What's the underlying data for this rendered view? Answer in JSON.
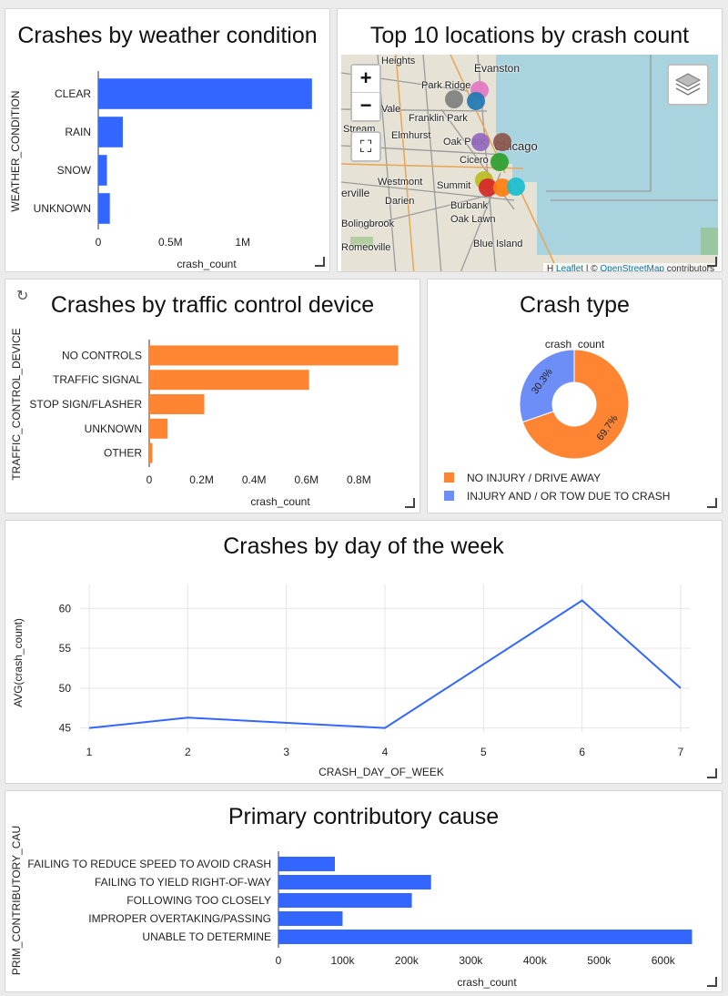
{
  "weather": {
    "title": "Crashes by weather condition",
    "chart_data": {
      "type": "bar",
      "orientation": "horizontal",
      "categories": [
        "CLEAR",
        "RAIN",
        "SNOW",
        "UNKNOWN"
      ],
      "values": [
        1480000,
        170000,
        60000,
        80000
      ],
      "xlabel": "crash_count",
      "ylabel": "WEATHER_CONDITION",
      "xlim": [
        0,
        1500000
      ],
      "ticks": [
        {
          "v": 0,
          "label": "0"
        },
        {
          "v": 500000,
          "label": "0.5M"
        },
        {
          "v": 1000000,
          "label": "1M"
        }
      ],
      "color": "#3366ff"
    }
  },
  "map": {
    "title": "Top 10 locations by crash count",
    "zoom_in": "+",
    "zoom_out": "−",
    "fullscreen": "⛶",
    "attribution_prefix": "H",
    "attribution_leaflet": "Leaflet",
    "attribution_sep": " | © ",
    "attribution_osm": "OpenStreetMap",
    "attribution_suffix": " contributors",
    "labels": {
      "heights": "Heights",
      "evanston": "Evanston",
      "park_ridge": "Park Ridge",
      "vale": "Vale",
      "franklin_park": "Franklin Park",
      "stream": "Stream",
      "elmhurst": "Elmhurst",
      "oak_park": "Oak Park",
      "chicago": "Chicago",
      "cicero": "Cicero",
      "westmont": "Westmont",
      "summit": "Summit",
      "erville": "erville",
      "darien": "Darien",
      "burbank": "Burbank",
      "oak_lawn": "Oak Lawn",
      "bolingbrook": "Bolingbrook",
      "blue_island": "Blue Island",
      "romeoville": "Romeoville"
    },
    "marker_colors": [
      "#7f7f7f",
      "#e377c2",
      "#1f77b4",
      "#9467bd",
      "#8c564b",
      "#2ca02c",
      "#bcbd22",
      "#d62728",
      "#ff7f0e",
      "#17becf"
    ]
  },
  "traffic": {
    "title": "Crashes by traffic control device",
    "refresh_icon": "↻",
    "chart_data": {
      "type": "bar",
      "orientation": "horizontal",
      "categories": [
        "NO CONTROLS",
        "TRAFFIC SIGNAL",
        "STOP SIGN/FLASHER",
        "UNKNOWN",
        "OTHER"
      ],
      "values": [
        950000,
        610000,
        210000,
        70000,
        12000
      ],
      "xlabel": "crash_count",
      "ylabel": "TRAFFIC_CONTROL_DEVICE",
      "xlim": [
        0,
        1000000
      ],
      "ticks": [
        {
          "v": 0,
          "label": "0"
        },
        {
          "v": 200000,
          "label": "0.2M"
        },
        {
          "v": 400000,
          "label": "0.4M"
        },
        {
          "v": 600000,
          "label": "0.6M"
        },
        {
          "v": 800000,
          "label": "0.8M"
        }
      ],
      "color": "#ff8533"
    }
  },
  "crash_type": {
    "title": "Crash type",
    "chart_data": {
      "type": "pie",
      "subtitle": "crash_count",
      "slices": [
        {
          "name": "NO INJURY / DRIVE AWAY",
          "value": 69.7,
          "label": "69.7%",
          "color": "#ff8533"
        },
        {
          "name": "INJURY AND / OR TOW DUE TO CRASH",
          "value": 30.3,
          "label": "30.3%",
          "color": "#6d8ef7"
        }
      ]
    }
  },
  "day_of_week": {
    "title": "Crashes by day of the week",
    "chart_data": {
      "type": "line",
      "x": [
        1,
        2,
        4,
        6,
        7
      ],
      "y": [
        45.0,
        46.3,
        45.0,
        61.0,
        50.0
      ],
      "xlabel": "CRASH_DAY_OF_WEEK",
      "ylabel": "AVG(crash_count)",
      "xlim": [
        1,
        7
      ],
      "ylim": [
        44.5,
        63
      ],
      "xticks": [
        1,
        2,
        3,
        4,
        5,
        6,
        7
      ],
      "yticks": [
        45,
        50,
        55,
        60
      ],
      "grid": true,
      "color": "#3366ff"
    }
  },
  "cause": {
    "title": "Primary contributory cause",
    "chart_data": {
      "type": "bar",
      "orientation": "horizontal",
      "categories": [
        "FAILING TO REDUCE SPEED TO AVOID CRASH",
        "FAILING TO YIELD RIGHT-OF-WAY",
        "FOLLOWING TOO CLOSELY",
        "IMPROPER OVERTAKING/PASSING",
        "UNABLE TO DETERMINE"
      ],
      "values": [
        88000,
        238000,
        208000,
        100000,
        645000
      ],
      "xlabel": "crash_count",
      "ylabel": "PRIM_CONTRIBUTORY_CAU",
      "xlim": [
        0,
        650000
      ],
      "ticks": [
        {
          "v": 0,
          "label": "0"
        },
        {
          "v": 100000,
          "label": "100k"
        },
        {
          "v": 200000,
          "label": "200k"
        },
        {
          "v": 300000,
          "label": "300k"
        },
        {
          "v": 400000,
          "label": "400k"
        },
        {
          "v": 500000,
          "label": "500k"
        },
        {
          "v": 600000,
          "label": "600k"
        }
      ],
      "color": "#3366ff"
    }
  }
}
